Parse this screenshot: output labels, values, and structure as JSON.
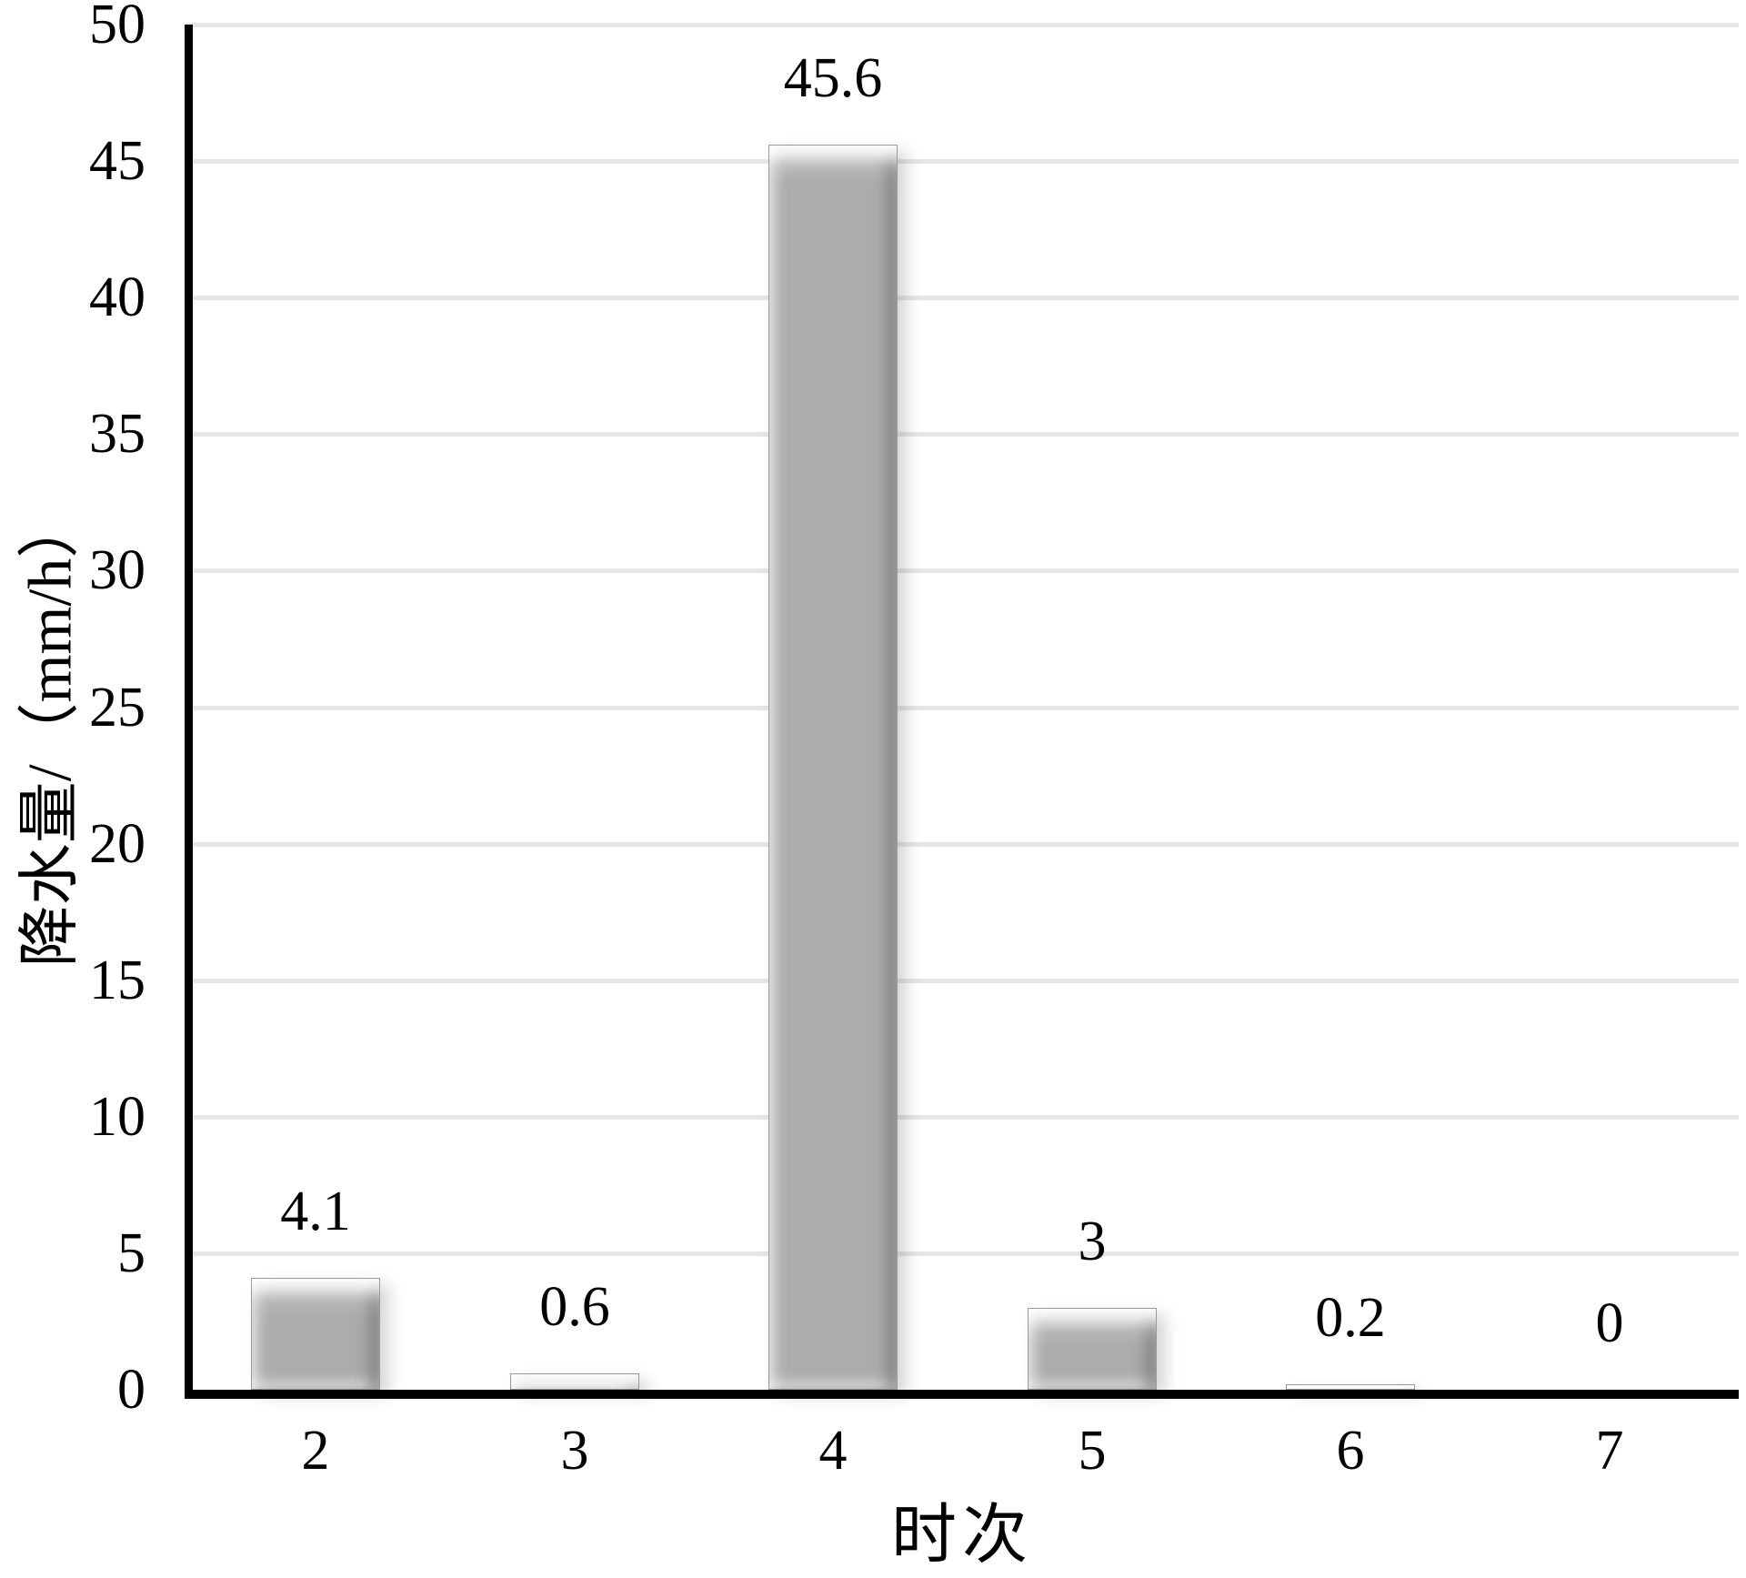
{
  "chart_data": {
    "type": "bar",
    "title": "",
    "categories": [
      "2",
      "3",
      "4",
      "5",
      "6",
      "7"
    ],
    "values": [
      4.1,
      0.6,
      45.6,
      3,
      0.2,
      0
    ],
    "value_labels": [
      "4.1",
      "0.6",
      "45.6",
      "3",
      "0.2",
      "0"
    ],
    "series_name": "",
    "xlabel": "时次",
    "ylabel": "降水量/（mm/h）",
    "ylim": [
      0,
      50
    ],
    "ytick_step": 5,
    "yticks": [
      0,
      5,
      10,
      15,
      20,
      25,
      30,
      35,
      40,
      45,
      50
    ],
    "grid": "horizontal",
    "legend_position": "none",
    "data_labels": "outside-end",
    "colors": {
      "bar_fill": "#acacac",
      "bar_edge": "#9a9a9a",
      "gridline": "#e6e6e6",
      "axis_line": "#000000",
      "text": "#000000",
      "background": "#ffffff"
    }
  }
}
